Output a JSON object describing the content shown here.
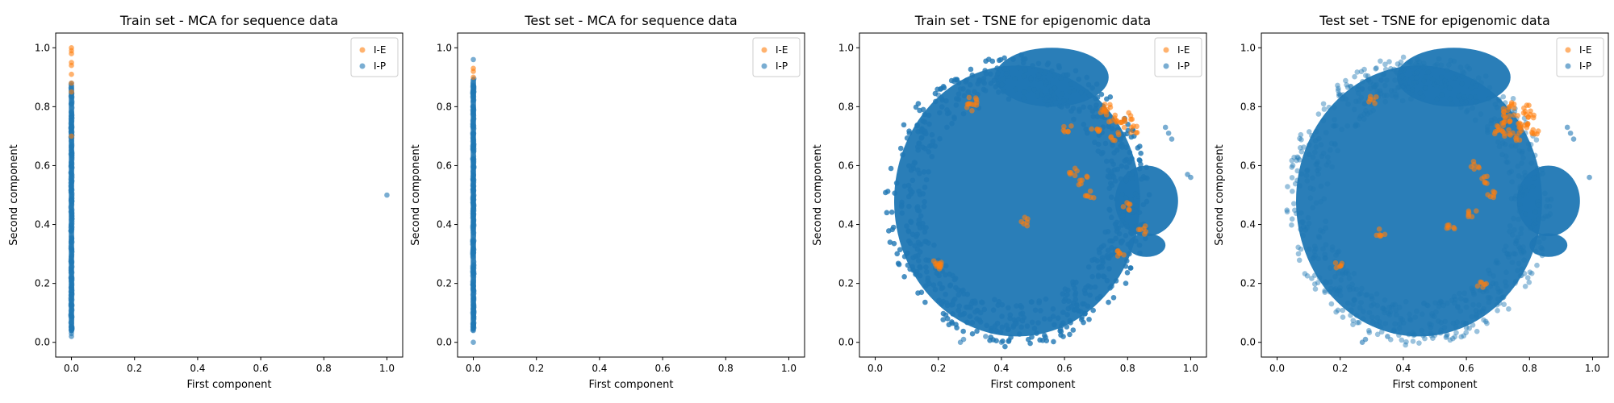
{
  "colors": {
    "I-E": "#ff7f0e",
    "I-P": "#1f77b4",
    "axes": "#000000",
    "legend_border": "#cccccc"
  },
  "chart_data": [
    {
      "type": "scatter",
      "title": "Train set - MCA for sequence data",
      "xlabel": "First component",
      "ylabel": "Second component",
      "xlim": [
        -0.05,
        1.05
      ],
      "ylim": [
        -0.05,
        1.05
      ],
      "xticks": [
        "0.0",
        "0.2",
        "0.4",
        "0.6",
        "0.8",
        "1.0"
      ],
      "yticks": [
        "0.0",
        "0.2",
        "0.4",
        "0.6",
        "0.8",
        "1.0"
      ],
      "grid": false,
      "legend_position": "top-right",
      "series": [
        {
          "name": "I-E",
          "color": "#ff7f0e",
          "points": [
            [
              0.0,
              1.0
            ],
            [
              0.0,
              0.99
            ],
            [
              0.0,
              0.98
            ],
            [
              0.0,
              0.95
            ],
            [
              0.0,
              0.94
            ],
            [
              0.0,
              0.91
            ],
            [
              0.0,
              0.88
            ],
            [
              0.0,
              0.85
            ],
            [
              0.0,
              0.7
            ]
          ]
        },
        {
          "name": "I-P",
          "color": "#1f77b4",
          "points": [
            [
              0.0,
              0.02
            ],
            [
              0.0,
              0.03
            ],
            [
              0.0,
              0.88
            ],
            [
              1.0,
              0.5
            ]
          ],
          "dense_band": {
            "x": [
              0.0,
              0.0
            ],
            "y": [
              0.03,
              0.88
            ]
          }
        }
      ]
    },
    {
      "type": "scatter",
      "title": "Test set - MCA for sequence data",
      "xlabel": "First component",
      "ylabel": "Second component",
      "xlim": [
        -0.05,
        1.05
      ],
      "ylim": [
        -0.05,
        1.05
      ],
      "xticks": [
        "0.0",
        "0.2",
        "0.4",
        "0.6",
        "0.8",
        "1.0"
      ],
      "yticks": [
        "0.0",
        "0.2",
        "0.4",
        "0.6",
        "0.8",
        "1.0"
      ],
      "grid": false,
      "legend_position": "top-right",
      "series": [
        {
          "name": "I-E",
          "color": "#ff7f0e",
          "points": [
            [
              0.0,
              0.93
            ],
            [
              0.0,
              0.92
            ],
            [
              0.0,
              0.9
            ]
          ]
        },
        {
          "name": "I-P",
          "color": "#1f77b4",
          "points": [
            [
              0.0,
              0.0
            ],
            [
              0.0,
              0.96
            ],
            [
              0.0,
              0.04
            ]
          ],
          "dense_band": {
            "x": [
              0.0,
              0.0
            ],
            "y": [
              0.04,
              0.9
            ]
          }
        }
      ]
    },
    {
      "type": "scatter",
      "title": "Train set - TSNE for epigenomic data",
      "xlabel": "First component",
      "ylabel": "Second component",
      "xlim": [
        -0.05,
        1.05
      ],
      "ylim": [
        -0.05,
        1.05
      ],
      "xticks": [
        "0.0",
        "0.2",
        "0.4",
        "0.6",
        "0.8",
        "1.0"
      ],
      "yticks": [
        "0.0",
        "0.2",
        "0.4",
        "0.6",
        "0.8",
        "1.0"
      ],
      "grid": false,
      "legend_position": "top-right",
      "series": [
        {
          "name": "I-E",
          "color": "#ff7f0e",
          "points": [
            [
              0.72,
              0.78
            ],
            [
              0.75,
              0.76
            ],
            [
              0.78,
              0.74
            ],
            [
              0.8,
              0.77
            ],
            [
              0.7,
              0.72
            ],
            [
              0.76,
              0.7
            ],
            [
              0.82,
              0.72
            ],
            [
              0.74,
              0.8
            ],
            [
              0.31,
              0.82
            ],
            [
              0.3,
              0.8
            ],
            [
              0.63,
              0.58
            ],
            [
              0.66,
              0.55
            ],
            [
              0.68,
              0.5
            ],
            [
              0.8,
              0.46
            ],
            [
              0.78,
              0.3
            ],
            [
              0.2,
              0.27
            ],
            [
              0.2,
              0.26
            ],
            [
              0.47,
              0.41
            ],
            [
              0.61,
              0.72
            ],
            [
              0.85,
              0.38
            ]
          ]
        },
        {
          "name": "I-P",
          "color": "#1f77b4",
          "points": [
            [
              0.2,
              0.84
            ],
            [
              0.21,
              0.83
            ],
            [
              0.27,
              0.86
            ],
            [
              0.29,
              0.89
            ],
            [
              0.33,
              0.89
            ],
            [
              0.92,
              0.73
            ],
            [
              0.93,
              0.71
            ],
            [
              0.94,
              0.69
            ],
            [
              1.0,
              0.56
            ],
            [
              0.99,
              0.57
            ],
            [
              0.27,
              0.0
            ],
            [
              0.28,
              0.01
            ],
            [
              0.35,
              0.02
            ],
            [
              0.4,
              0.0
            ]
          ],
          "main_cloud": {
            "cx": 0.45,
            "cy": 0.48,
            "rx": 0.39,
            "ry": 0.46
          },
          "sub_clusters": [
            {
              "cx": 0.56,
              "cy": 0.9,
              "rx": 0.18,
              "ry": 0.1
            },
            {
              "cx": 0.86,
              "cy": 0.48,
              "rx": 0.1,
              "ry": 0.12
            },
            {
              "cx": 0.86,
              "cy": 0.33,
              "rx": 0.06,
              "ry": 0.04
            }
          ]
        }
      ]
    },
    {
      "type": "scatter",
      "title": "Test set - TSNE for epigenomic data",
      "xlabel": "First component",
      "ylabel": "Second component",
      "xlim": [
        -0.05,
        1.05
      ],
      "ylim": [
        -0.05,
        1.05
      ],
      "xticks": [
        "0.0",
        "0.2",
        "0.4",
        "0.6",
        "0.8",
        "1.0"
      ],
      "yticks": [
        "0.0",
        "0.2",
        "0.4",
        "0.6",
        "0.8",
        "1.0"
      ],
      "grid": false,
      "legend_position": "top-right",
      "series": [
        {
          "name": "I-E",
          "color": "#ff7f0e",
          "points": [
            [
              0.72,
              0.78
            ],
            [
              0.75,
              0.76
            ],
            [
              0.78,
              0.74
            ],
            [
              0.8,
              0.77
            ],
            [
              0.7,
              0.72
            ],
            [
              0.76,
              0.7
            ],
            [
              0.82,
              0.72
            ],
            [
              0.74,
              0.8
            ],
            [
              0.77,
              0.73
            ],
            [
              0.79,
              0.79
            ],
            [
              0.71,
              0.75
            ],
            [
              0.73,
              0.71
            ],
            [
              0.3,
              0.82
            ],
            [
              0.63,
              0.6
            ],
            [
              0.66,
              0.55
            ],
            [
              0.68,
              0.5
            ],
            [
              0.62,
              0.44
            ],
            [
              0.55,
              0.4
            ],
            [
              0.33,
              0.37
            ],
            [
              0.2,
              0.26
            ],
            [
              0.65,
              0.2
            ]
          ]
        },
        {
          "name": "I-P",
          "color": "#1f77b4",
          "points": [
            [
              0.2,
              0.84
            ],
            [
              0.27,
              0.86
            ],
            [
              0.29,
              0.89
            ],
            [
              0.33,
              0.89
            ],
            [
              0.92,
              0.73
            ],
            [
              0.93,
              0.71
            ],
            [
              0.94,
              0.69
            ],
            [
              0.99,
              0.56
            ],
            [
              0.27,
              0.0
            ],
            [
              0.28,
              0.01
            ],
            [
              0.35,
              0.02
            ]
          ],
          "main_cloud": {
            "cx": 0.45,
            "cy": 0.48,
            "rx": 0.39,
            "ry": 0.46
          },
          "sub_clusters": [
            {
              "cx": 0.56,
              "cy": 0.9,
              "rx": 0.18,
              "ry": 0.1
            },
            {
              "cx": 0.86,
              "cy": 0.48,
              "rx": 0.1,
              "ry": 0.12
            },
            {
              "cx": 0.86,
              "cy": 0.33,
              "rx": 0.06,
              "ry": 0.04
            }
          ]
        }
      ]
    }
  ]
}
